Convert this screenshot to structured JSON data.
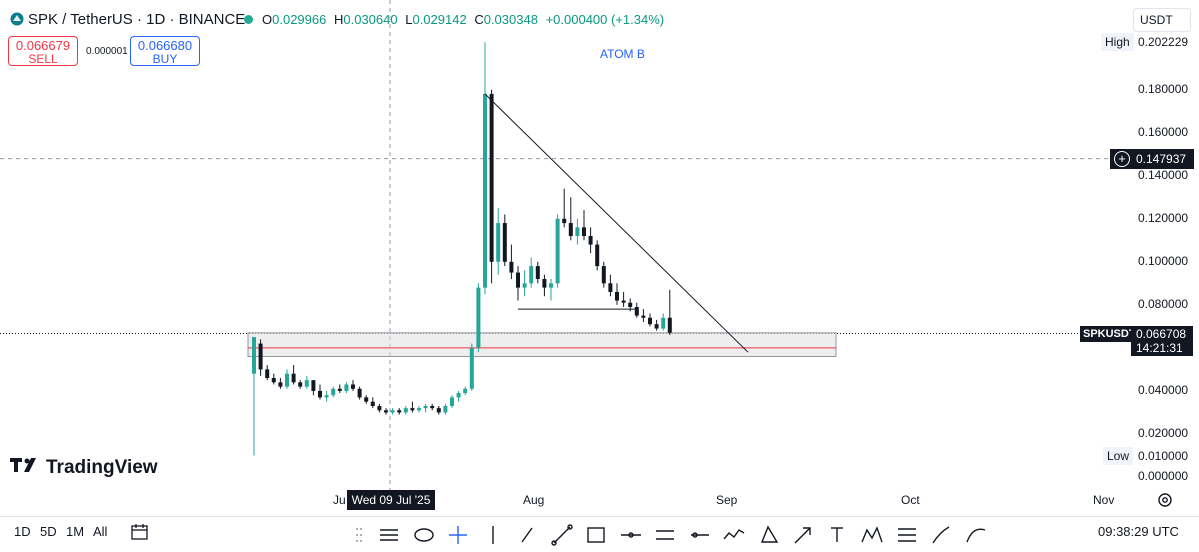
{
  "header": {
    "symbol_line": "SPK / TetherUS · 1D · BINANCE",
    "ohlc": [
      {
        "key": "O",
        "value": "0.029966"
      },
      {
        "key": "H",
        "value": "0.030640"
      },
      {
        "key": "L",
        "value": "0.029142"
      },
      {
        "key": "C",
        "value": "0.030348"
      }
    ],
    "change": "+0.000400 (+1.34%)"
  },
  "trade": {
    "sell_price": "0.066679",
    "sell_label": "SELL",
    "spread": "0.000001",
    "buy_price": "0.066680",
    "buy_label": "BUY"
  },
  "price_axis": {
    "currency": "USDT",
    "high_label": "High",
    "high_value": "0.202229",
    "low_label": "Low",
    "low_value": "0.010000",
    "crosshair_value": "0.147937",
    "last_symbol": "SPKUSDT",
    "last_value": "0.066708",
    "countdown": "14:21:31"
  },
  "time_axis": {
    "ticks": [
      "Ju",
      "Aug",
      "Sep",
      "Oct",
      "Nov"
    ],
    "crosshair_date": "Wed 09 Jul '25"
  },
  "watermark": "TradingView",
  "annotation": "ATOM B",
  "bottom": {
    "ranges": [
      "1D",
      "5D",
      "1M",
      "All"
    ],
    "clock": "09:38:29 UTC"
  },
  "tools": [
    "lines-icon",
    "ellipse-icon",
    "crosshair-icon",
    "cursor-line-icon",
    "pen-icon",
    "trend-line-icon",
    "rectangle-icon",
    "horizontal-line-icon",
    "parallel-channel-icon",
    "horizontal-ray-icon",
    "path-icon",
    "triangle-icon",
    "arrow-icon",
    "text-icon",
    "pattern-icon",
    "fib-icon",
    "brush-icon",
    "curve-icon"
  ],
  "colors": {
    "up": "#26a69a",
    "down": "#131722",
    "accent": "#2962ff",
    "sell": "#f23645"
  },
  "chart_data": {
    "type": "candlestick",
    "title": "SPK / TetherUS · 1D · BINANCE",
    "ylim": [
      0.0,
      0.21
    ],
    "y_ticks": [
      0.0,
      0.02,
      0.04,
      0.06,
      0.08,
      0.1,
      0.12,
      0.14,
      0.16,
      0.18
    ],
    "candles": [
      [
        0.048,
        0.065,
        0.01,
        0.065
      ],
      [
        0.062,
        0.064,
        0.047,
        0.05
      ],
      [
        0.05,
        0.052,
        0.045,
        0.046
      ],
      [
        0.046,
        0.048,
        0.043,
        0.044
      ],
      [
        0.044,
        0.046,
        0.041,
        0.042
      ],
      [
        0.042,
        0.05,
        0.041,
        0.048
      ],
      [
        0.048,
        0.052,
        0.043,
        0.044
      ],
      [
        0.044,
        0.045,
        0.041,
        0.042
      ],
      [
        0.042,
        0.047,
        0.041,
        0.045
      ],
      [
        0.045,
        0.045,
        0.038,
        0.04
      ],
      [
        0.04,
        0.043,
        0.036,
        0.037
      ],
      [
        0.037,
        0.04,
        0.035,
        0.038
      ],
      [
        0.038,
        0.042,
        0.037,
        0.041
      ],
      [
        0.041,
        0.043,
        0.039,
        0.04
      ],
      [
        0.04,
        0.044,
        0.039,
        0.043
      ],
      [
        0.043,
        0.045,
        0.04,
        0.041
      ],
      [
        0.041,
        0.042,
        0.036,
        0.037
      ],
      [
        0.037,
        0.038,
        0.034,
        0.035
      ],
      [
        0.035,
        0.037,
        0.032,
        0.033
      ],
      [
        0.033,
        0.034,
        0.03,
        0.031
      ],
      [
        0.031,
        0.032,
        0.029,
        0.03
      ],
      [
        0.03,
        0.032,
        0.029,
        0.031
      ],
      [
        0.031,
        0.032,
        0.029,
        0.03
      ],
      [
        0.03,
        0.033,
        0.029,
        0.032
      ],
      [
        0.032,
        0.035,
        0.03,
        0.031
      ],
      [
        0.031,
        0.033,
        0.03,
        0.032
      ],
      [
        0.032,
        0.034,
        0.03,
        0.033
      ],
      [
        0.033,
        0.034,
        0.031,
        0.032
      ],
      [
        0.032,
        0.033,
        0.029,
        0.03
      ],
      [
        0.03,
        0.034,
        0.029,
        0.033
      ],
      [
        0.033,
        0.038,
        0.032,
        0.037
      ],
      [
        0.037,
        0.04,
        0.035,
        0.039
      ],
      [
        0.039,
        0.042,
        0.038,
        0.041
      ],
      [
        0.041,
        0.062,
        0.04,
        0.06
      ],
      [
        0.06,
        0.09,
        0.058,
        0.088
      ],
      [
        0.088,
        0.202,
        0.085,
        0.178
      ],
      [
        0.178,
        0.18,
        0.09,
        0.1
      ],
      [
        0.1,
        0.125,
        0.094,
        0.118
      ],
      [
        0.118,
        0.122,
        0.098,
        0.1
      ],
      [
        0.1,
        0.108,
        0.092,
        0.095
      ],
      [
        0.095,
        0.098,
        0.082,
        0.088
      ],
      [
        0.088,
        0.096,
        0.084,
        0.09
      ],
      [
        0.09,
        0.102,
        0.088,
        0.098
      ],
      [
        0.098,
        0.1,
        0.09,
        0.092
      ],
      [
        0.092,
        0.094,
        0.084,
        0.088
      ],
      [
        0.088,
        0.092,
        0.082,
        0.09
      ],
      [
        0.09,
        0.122,
        0.088,
        0.12
      ],
      [
        0.12,
        0.134,
        0.116,
        0.118
      ],
      [
        0.118,
        0.13,
        0.11,
        0.112
      ],
      [
        0.112,
        0.12,
        0.108,
        0.116
      ],
      [
        0.116,
        0.124,
        0.11,
        0.112
      ],
      [
        0.112,
        0.116,
        0.104,
        0.108
      ],
      [
        0.108,
        0.11,
        0.096,
        0.098
      ],
      [
        0.098,
        0.1,
        0.088,
        0.09
      ],
      [
        0.09,
        0.094,
        0.084,
        0.086
      ],
      [
        0.086,
        0.09,
        0.08,
        0.082
      ],
      [
        0.082,
        0.086,
        0.079,
        0.081
      ],
      [
        0.081,
        0.083,
        0.077,
        0.079
      ],
      [
        0.079,
        0.081,
        0.074,
        0.075
      ],
      [
        0.075,
        0.078,
        0.072,
        0.074
      ],
      [
        0.074,
        0.076,
        0.07,
        0.071
      ],
      [
        0.071,
        0.073,
        0.068,
        0.069
      ],
      [
        0.069,
        0.076,
        0.068,
        0.074
      ],
      [
        0.074,
        0.087,
        0.066,
        0.067
      ]
    ],
    "drawings": {
      "support_zone": [
        0.056,
        0.067
      ],
      "support_line": 0.06,
      "crosshair_price": 0.147937,
      "last_price": 0.066708
    }
  }
}
